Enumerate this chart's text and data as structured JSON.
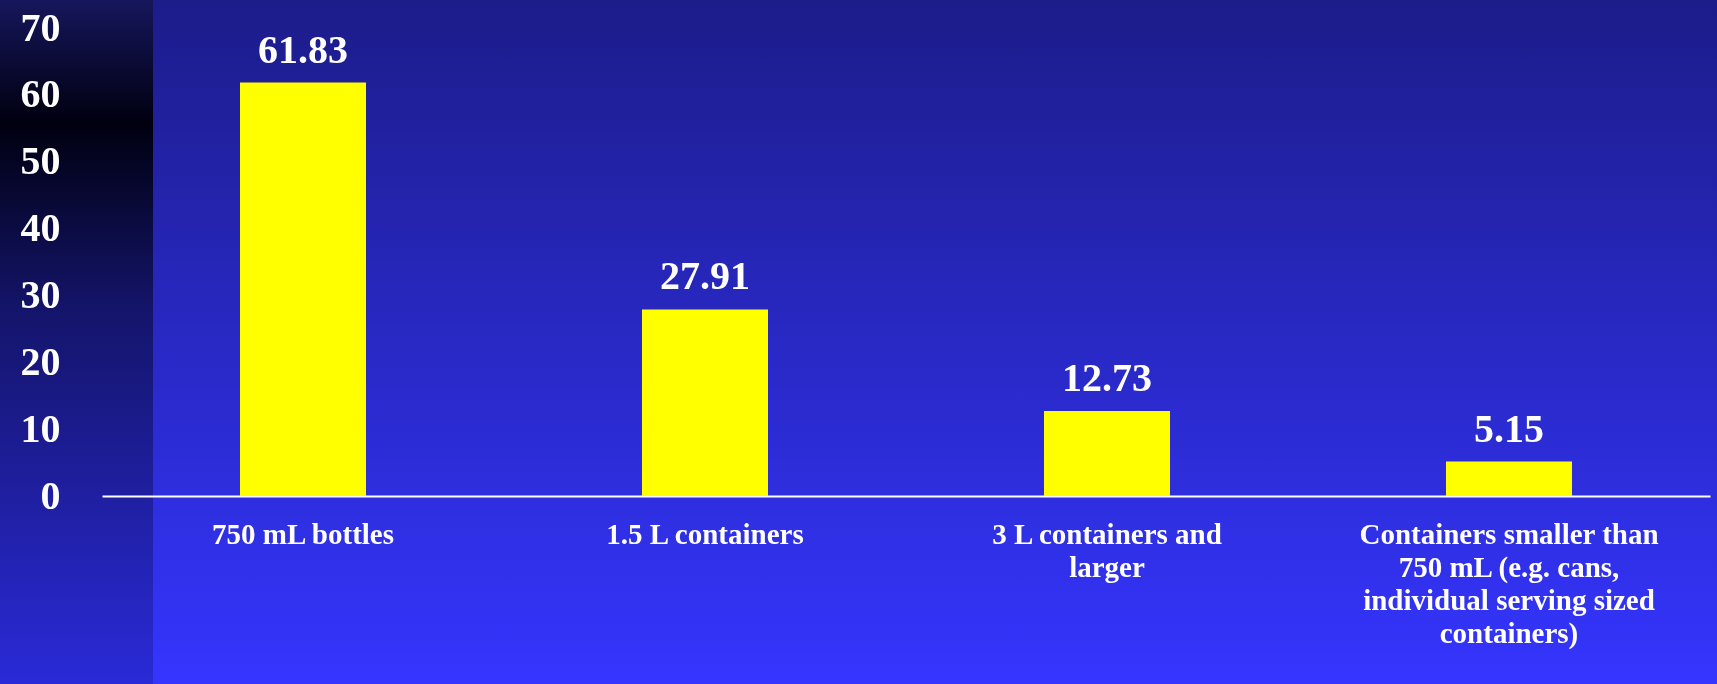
{
  "chart_data": {
    "type": "bar",
    "categories": [
      "750 mL bottles",
      "1.5 L containers",
      "3 L containers and larger",
      "Containers smaller than 750 mL (e.g. cans, individual serving sized containers)"
    ],
    "values": [
      61.83,
      27.91,
      12.73,
      5.15
    ],
    "color": "#ffff00",
    "ylim": [
      0,
      70
    ],
    "yticks": [
      0,
      10,
      20,
      30,
      40,
      50,
      60,
      70
    ],
    "data_labels": true
  }
}
